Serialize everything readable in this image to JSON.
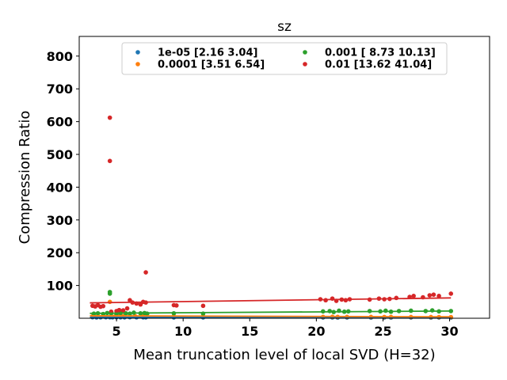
{
  "chart_data": {
    "type": "scatter",
    "title": "sz",
    "xlabel": "Mean truncation level of local SVD (H=32)",
    "ylabel": "Compression Ratio",
    "xlim": [
      2.2,
      33.0
    ],
    "ylim": [
      0,
      860
    ],
    "xticks": [
      5,
      10,
      15,
      20,
      25,
      30
    ],
    "yticks": [
      100,
      200,
      300,
      400,
      500,
      600,
      700,
      800
    ],
    "grid": false,
    "legend_position": "top",
    "series": [
      {
        "name": "1e-05 [2.16 3.04]",
        "color": "#1f77b4",
        "points": [
          [
            3.2,
            3
          ],
          [
            3.5,
            2.5
          ],
          [
            3.8,
            2.8
          ],
          [
            4.2,
            3
          ],
          [
            4.5,
            2.9
          ],
          [
            4.7,
            2.7
          ],
          [
            5.0,
            3
          ],
          [
            5.3,
            2.8
          ],
          [
            5.6,
            2.6
          ],
          [
            6.0,
            3
          ],
          [
            6.5,
            2.8
          ],
          [
            7.0,
            2.7
          ],
          [
            7.2,
            2.6
          ],
          [
            9.3,
            2.5
          ],
          [
            11.5,
            2.4
          ],
          [
            20.5,
            2.3
          ],
          [
            21.2,
            2.4
          ],
          [
            21.6,
            2.2
          ],
          [
            22.3,
            2.3
          ],
          [
            24.1,
            2.2
          ],
          [
            25.1,
            2.3
          ],
          [
            25.6,
            2.2
          ],
          [
            27.1,
            2.3
          ],
          [
            28.6,
            2.2
          ],
          [
            29.2,
            2.3
          ],
          [
            30.1,
            2.2
          ]
        ],
        "trend": [
          [
            3.0,
            3.0
          ],
          [
            30.1,
            2.4
          ]
        ]
      },
      {
        "name": "0.0001 [3.51 6.54]",
        "color": "#ff7f0e",
        "points": [
          [
            3.2,
            6
          ],
          [
            3.6,
            6.2
          ],
          [
            4.0,
            5.8
          ],
          [
            4.5,
            50
          ],
          [
            4.6,
            6.3
          ],
          [
            4.9,
            6
          ],
          [
            5.2,
            6.1
          ],
          [
            5.5,
            5.9
          ],
          [
            6.0,
            6.2
          ],
          [
            6.4,
            6
          ],
          [
            7.0,
            6.1
          ],
          [
            7.2,
            5.8
          ],
          [
            9.3,
            5.5
          ],
          [
            11.5,
            5
          ],
          [
            20.5,
            4.2
          ],
          [
            21.2,
            4.3
          ],
          [
            21.6,
            4
          ],
          [
            22.3,
            4.1
          ],
          [
            24.1,
            4
          ],
          [
            25.1,
            3.9
          ],
          [
            25.6,
            4
          ],
          [
            27.1,
            3.8
          ],
          [
            28.6,
            3.7
          ],
          [
            29.2,
            3.6
          ],
          [
            30.1,
            3.6
          ]
        ],
        "trend": [
          [
            3.0,
            7.5
          ],
          [
            30.1,
            4.5
          ]
        ]
      },
      {
        "name": "0.001 [ 8.73 10.13]",
        "color": "#2ca02c",
        "points": [
          [
            3.3,
            14
          ],
          [
            3.6,
            15
          ],
          [
            4.0,
            13
          ],
          [
            4.3,
            16
          ],
          [
            4.5,
            80
          ],
          [
            4.5,
            75
          ],
          [
            4.6,
            15
          ],
          [
            5.0,
            14
          ],
          [
            5.3,
            16
          ],
          [
            5.7,
            15
          ],
          [
            6.0,
            14
          ],
          [
            6.3,
            17
          ],
          [
            6.8,
            15
          ],
          [
            7.1,
            16
          ],
          [
            7.3,
            14
          ],
          [
            9.3,
            15
          ],
          [
            11.5,
            14
          ],
          [
            20.5,
            21
          ],
          [
            21.0,
            22
          ],
          [
            21.3,
            19
          ],
          [
            21.7,
            23
          ],
          [
            22.1,
            20
          ],
          [
            22.4,
            21
          ],
          [
            24.0,
            22
          ],
          [
            24.8,
            21
          ],
          [
            25.2,
            23
          ],
          [
            25.6,
            20
          ],
          [
            26.2,
            22
          ],
          [
            27.1,
            23
          ],
          [
            28.2,
            22
          ],
          [
            28.7,
            24
          ],
          [
            29.2,
            21
          ],
          [
            30.1,
            22
          ]
        ],
        "trend": [
          [
            3.0,
            15
          ],
          [
            30.1,
            22
          ]
        ]
      },
      {
        "name": "0.01 [13.62 41.04]",
        "color": "#d62728",
        "points": [
          [
            3.2,
            38
          ],
          [
            3.4,
            36
          ],
          [
            3.6,
            40
          ],
          [
            3.8,
            35
          ],
          [
            4.0,
            37
          ],
          [
            4.5,
            612
          ],
          [
            4.5,
            480
          ],
          [
            4.6,
            20
          ],
          [
            5.0,
            22
          ],
          [
            5.2,
            25
          ],
          [
            5.5,
            24
          ],
          [
            5.8,
            30
          ],
          [
            6.0,
            55
          ],
          [
            6.2,
            48
          ],
          [
            6.5,
            45
          ],
          [
            6.8,
            42
          ],
          [
            7.0,
            50
          ],
          [
            7.2,
            48
          ],
          [
            7.2,
            140
          ],
          [
            9.3,
            40
          ],
          [
            9.5,
            39
          ],
          [
            11.5,
            38
          ],
          [
            20.3,
            58
          ],
          [
            20.7,
            55
          ],
          [
            21.2,
            60
          ],
          [
            21.5,
            53
          ],
          [
            21.9,
            57
          ],
          [
            22.2,
            55
          ],
          [
            22.5,
            58
          ],
          [
            24.0,
            57
          ],
          [
            24.7,
            60
          ],
          [
            25.1,
            58
          ],
          [
            25.5,
            59
          ],
          [
            26.0,
            62
          ],
          [
            27.0,
            65
          ],
          [
            27.3,
            68
          ],
          [
            28.0,
            64
          ],
          [
            28.5,
            70
          ],
          [
            28.8,
            72
          ],
          [
            29.2,
            68
          ],
          [
            30.1,
            75
          ]
        ],
        "trend": [
          [
            3.0,
            47
          ],
          [
            30.1,
            62
          ]
        ]
      }
    ]
  }
}
